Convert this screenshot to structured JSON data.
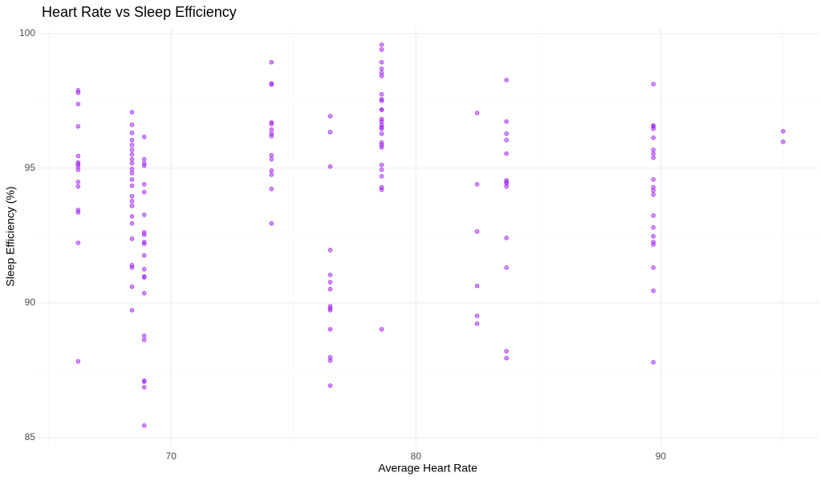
{
  "chart_data": {
    "type": "scatter",
    "title": "Heart Rate vs Sleep Efficiency",
    "x_label": "Average Heart Rate",
    "y_label": "Sleep Efficiency (%)",
    "color": "#a020f0",
    "xlim": [
      64.55,
      96.45
    ],
    "ylim": [
      84.7,
      100.2
    ],
    "xticks": [
      70,
      80,
      90
    ],
    "yticks": [
      85,
      90,
      95,
      100
    ],
    "minor_xticks": [
      65,
      75,
      85,
      95
    ],
    "minor_yticks": [
      87.5,
      92.5,
      97.5
    ],
    "grid": true,
    "x": [
      66.2,
      66.2,
      66.2,
      66.2,
      66.2,
      66.2,
      66.2,
      66.2,
      66.2,
      66.2,
      66.2,
      66.2,
      66.2,
      66.2,
      66.2,
      68.4,
      68.4,
      68.4,
      68.4,
      68.4,
      68.4,
      68.4,
      68.4,
      68.4,
      68.4,
      68.4,
      68.4,
      68.4,
      68.4,
      68.4,
      68.4,
      68.4,
      68.4,
      68.4,
      68.4,
      68.4,
      68.4,
      68.4,
      68.9,
      68.9,
      68.9,
      68.9,
      68.9,
      68.9,
      68.9,
      68.9,
      68.9,
      68.9,
      68.9,
      68.9,
      68.9,
      68.9,
      68.9,
      68.9,
      68.9,
      68.9,
      68.9,
      68.9,
      68.9,
      68.9,
      74.1,
      74.1,
      74.1,
      74.1,
      74.1,
      74.1,
      74.1,
      74.1,
      74.1,
      74.1,
      74.1,
      74.1,
      74.1,
      74.1,
      76.5,
      76.5,
      76.5,
      76.5,
      76.5,
      76.5,
      76.5,
      76.5,
      76.5,
      76.5,
      76.5,
      76.5,
      76.5,
      76.5,
      78.6,
      78.6,
      78.6,
      78.6,
      78.6,
      78.6,
      78.6,
      78.6,
      78.6,
      78.6,
      78.6,
      78.6,
      78.6,
      78.6,
      78.6,
      78.6,
      78.6,
      78.6,
      78.6,
      78.6,
      78.6,
      78.6,
      78.6,
      78.6,
      78.6,
      78.6,
      82.5,
      82.5,
      82.5,
      82.5,
      82.5,
      82.5,
      83.7,
      83.7,
      83.7,
      83.7,
      83.7,
      83.7,
      83.7,
      83.7,
      83.7,
      83.7,
      83.7,
      83.7,
      83.7,
      89.7,
      89.7,
      89.7,
      89.7,
      89.7,
      89.7,
      89.7,
      89.7,
      89.7,
      89.7,
      89.7,
      89.7,
      89.7,
      89.7,
      89.7,
      89.7,
      89.7,
      89.7,
      89.7,
      89.7,
      95.0,
      95.0
    ],
    "y": [
      97.89,
      97.8,
      97.38,
      96.55,
      95.45,
      95.21,
      95.15,
      95.06,
      94.94,
      94.49,
      94.32,
      93.45,
      93.36,
      92.23,
      87.83,
      97.08,
      96.61,
      96.31,
      96.04,
      95.86,
      95.68,
      95.51,
      95.33,
      95.18,
      94.97,
      94.82,
      94.58,
      94.35,
      93.96,
      93.78,
      93.6,
      93.21,
      92.95,
      92.38,
      91.4,
      91.31,
      90.6,
      89.73,
      96.16,
      95.33,
      95.18,
      95.09,
      94.4,
      94.11,
      93.27,
      92.62,
      92.53,
      92.26,
      92.2,
      91.76,
      91.25,
      90.98,
      90.95,
      90.36,
      88.78,
      88.63,
      87.11,
      87.08,
      86.87,
      85.45,
      98.93,
      98.15,
      98.1,
      96.7,
      96.64,
      96.43,
      96.28,
      96.19,
      95.48,
      95.33,
      94.91,
      94.76,
      94.23,
      92.95,
      96.93,
      96.34,
      95.06,
      91.96,
      91.04,
      90.77,
      90.51,
      89.88,
      89.79,
      89.73,
      89.02,
      87.98,
      87.86,
      86.93,
      99.58,
      99.4,
      98.93,
      98.69,
      98.54,
      98.42,
      97.74,
      97.56,
      97.5,
      97.17,
      97.17,
      96.82,
      96.73,
      96.61,
      96.52,
      96.46,
      96.28,
      95.95,
      95.86,
      95.77,
      95.12,
      94.94,
      94.7,
      94.29,
      94.2,
      89.02,
      97.05,
      94.4,
      92.65,
      90.63,
      89.52,
      89.23,
      98.27,
      96.73,
      96.28,
      96.04,
      95.54,
      94.55,
      94.49,
      94.43,
      94.32,
      92.41,
      91.31,
      88.21,
      87.95,
      98.12,
      96.58,
      96.55,
      96.46,
      96.13,
      95.68,
      95.54,
      95.39,
      94.58,
      94.29,
      94.17,
      94.02,
      93.24,
      92.8,
      92.47,
      92.26,
      92.17,
      91.31,
      90.45,
      87.8,
      96.37,
      95.98
    ]
  }
}
